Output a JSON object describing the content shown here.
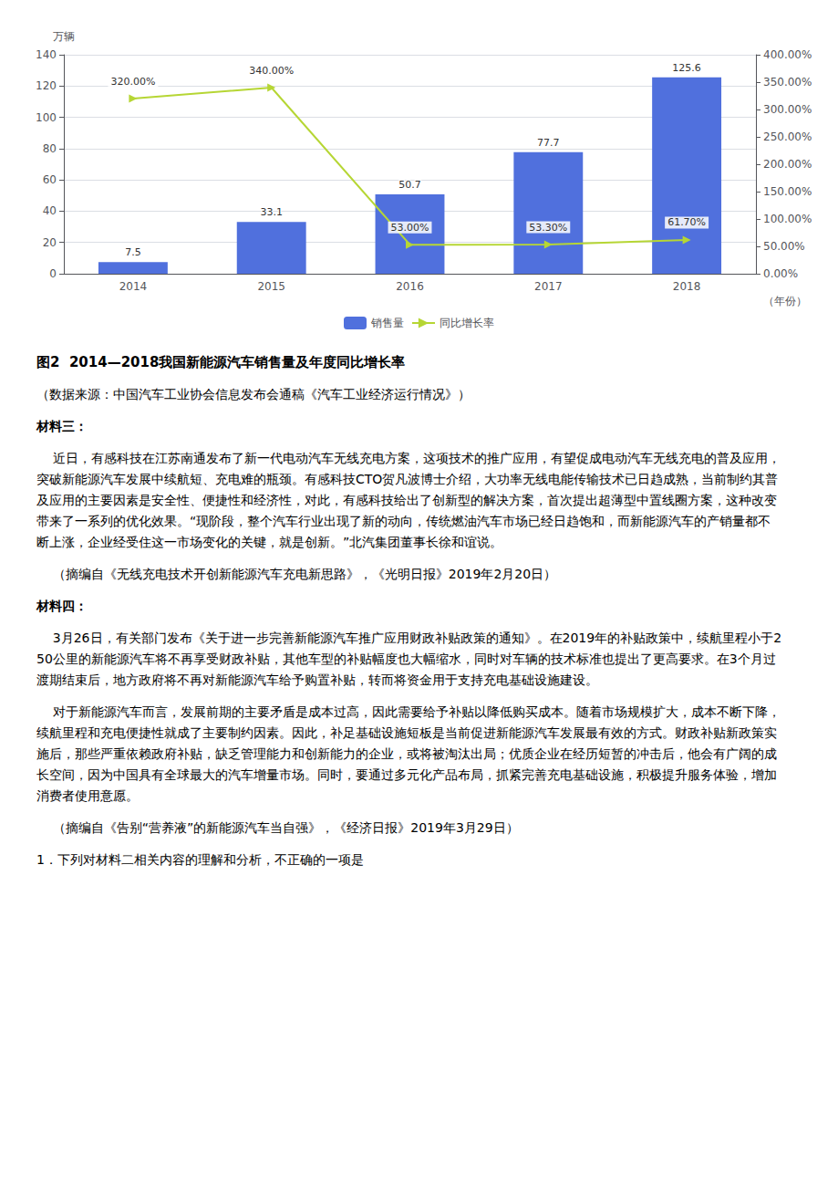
{
  "chart_data": {
    "type": "bar",
    "categories": [
      "2014",
      "2015",
      "2016",
      "2017",
      "2018"
    ],
    "series": [
      {
        "name": "销售量",
        "type": "bar",
        "values": [
          7.5,
          33.1,
          50.7,
          77.7,
          125.6
        ]
      },
      {
        "name": "同比增长率",
        "type": "line",
        "axis": "y2",
        "marker": "triangle-right",
        "values": [
          320.0,
          340.0,
          53.0,
          53.3,
          61.7
        ],
        "value_labels": [
          "320.00%",
          "340.00%",
          "53.00%",
          "53.30%",
          "61.70%"
        ]
      }
    ],
    "xlabel": "（年份）",
    "ylabel": "万辆",
    "ylim": [
      0,
      140
    ],
    "yticks": [
      0,
      20,
      40,
      60,
      80,
      100,
      120,
      140
    ],
    "y2lim": [
      0,
      400
    ],
    "y2ticks": [
      {
        "value": 0,
        "label": "0.00%"
      },
      {
        "value": 50,
        "label": "50.00%"
      },
      {
        "value": 100,
        "label": "100.00%"
      },
      {
        "value": 150,
        "label": "150.00%"
      },
      {
        "value": 200,
        "label": "200.00%"
      },
      {
        "value": 250,
        "label": "250.00%"
      },
      {
        "value": 300,
        "label": "300.00%"
      },
      {
        "value": 350,
        "label": "350.00%"
      },
      {
        "value": 400,
        "label": "400.00%"
      }
    ],
    "grid": true,
    "legend": "bottom",
    "data_labels": true,
    "annotations": [
      "图2  2014—2018我国新能源汽车销售量及年度同比增长率",
      "（数据来源：中国汽车工业协会信息发布会通稿《汽车工业经济运行情况》）",
      "材料三：",
      "    近日，有感科技在江苏南通发布了新一代电动汽车无线充电方案，这项技术的推广应用，有望促成电动汽车无线充电的普及应用，突破新能源汽车发展中续航短、充电难的瓶颈。有感科技CTO贺凡波博士介绍，大功率无线电能传输技术已日趋成熟，当前制约其普及应用的主要因素是安全性、便捷性和经济性，对此，有感科技给出了创新型的解决方案，首次提出超薄型中置线圈方案，这种改变带来了一系列的优化效果。“现阶段，整个汽车行业出现了新的动向，传统燃油汽车市场已经日趋饱和，而新能源汽车的产销量都不断上涨，企业经受住这一市场变化的关键，就是创新。”北汽集团董事长徐和谊说。",
      "    （摘编自《无线充电技术开创新能源汽车充电新思路》，《光明日报》2019年2月20日）",
      "材料四：",
      "    3月26日，有关部门发布《关于进一步完善新能源汽车推广应用财政补贴政策的通知》。在2019年的补贴政策中，续航里程小于250公里的新能源汽车将不再享受财政补贴，其他车型的补贴幅度也大幅缩水，同时对车辆的技术标准也提出了更高要求。在3个月过渡期结束后，地方政府将不再对新能源汽车给予购置补贴，转而将资金用于支持充电基础设施建设。",
      "    对于新能源汽车而言，发展前期的主要矛盾是成本过高，因此需要给予补贴以降低购买成本。随着市场规模扩大，成本不断下降，续航里程和充电便捷性就成了主要制约因素。因此，补足基础设施短板是当前促进新能源汽车发展最有效的方式。财政补贴新政策实施后，那些严重依赖政府补贴，缺乏管理能力和创新能力的企业，或将被淘汰出局；优质企业在经历短暂的冲击后，他会有广阔的成长空间，因为中国具有全球最大的汽车增量市场。同时，要通过多元化产品布局，抓紧完善充电基础设施，积极提升服务体验，增加消费者使用意愿。",
      "    （摘编自《告别“营养液”的新能源汽车当自强》，《经济日报》2019年3月29日）",
      "1．下列对材料二相关内容的理解和分析，不正确的一项是"
    ]
  }
}
